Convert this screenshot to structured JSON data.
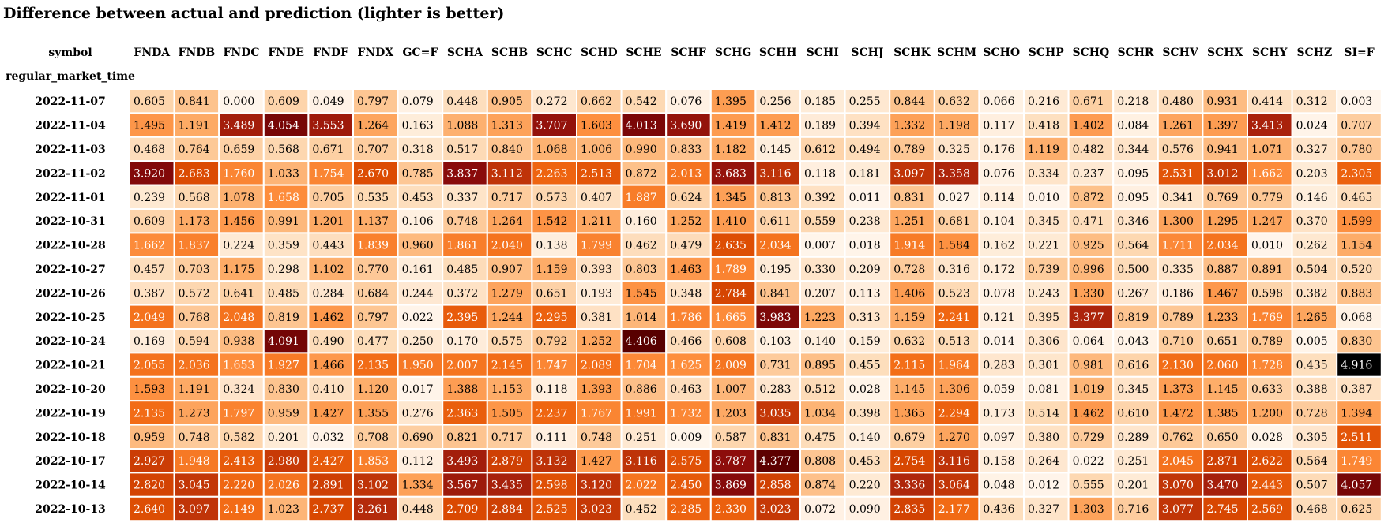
{
  "chart_data": {
    "type": "heatmap",
    "title": "Difference between actual and prediction (lighter is better)",
    "column_header": "symbol",
    "row_header": "regular_market_time",
    "columns": [
      "FNDA",
      "FNDB",
      "FNDC",
      "FNDE",
      "FNDF",
      "FNDX",
      "GC=F",
      "SCHA",
      "SCHB",
      "SCHC",
      "SCHD",
      "SCHE",
      "SCHF",
      "SCHG",
      "SCHH",
      "SCHI",
      "SCHJ",
      "SCHK",
      "SCHM",
      "SCHO",
      "SCHP",
      "SCHQ",
      "SCHR",
      "SCHV",
      "SCHX",
      "SCHY",
      "SCHZ",
      "SI=F"
    ],
    "rows": [
      "2022-11-07",
      "2022-11-04",
      "2022-11-03",
      "2022-11-02",
      "2022-11-01",
      "2022-10-31",
      "2022-10-28",
      "2022-10-27",
      "2022-10-26",
      "2022-10-25",
      "2022-10-24",
      "2022-10-21",
      "2022-10-20",
      "2022-10-19",
      "2022-10-18",
      "2022-10-17",
      "2022-10-14",
      "2022-10-13"
    ],
    "values": [
      [
        "0.605",
        "0.841",
        "0.000",
        "0.609",
        "0.049",
        "0.797",
        "0.079",
        "0.448",
        "0.905",
        "0.272",
        "0.662",
        "0.542",
        "0.076",
        "1.395",
        "0.256",
        "0.185",
        "0.255",
        "0.844",
        "0.632",
        "0.066",
        "0.216",
        "0.671",
        "0.218",
        "0.480",
        "0.931",
        "0.414",
        "0.312",
        "0.003"
      ],
      [
        "1.495",
        "1.191",
        "3.489",
        "4.054",
        "3.553",
        "1.264",
        "0.163",
        "1.088",
        "1.313",
        "3.707",
        "1.603",
        "4.013",
        "3.690",
        "1.419",
        "1.412",
        "0.189",
        "0.394",
        "1.332",
        "1.198",
        "0.117",
        "0.418",
        "1.402",
        "0.084",
        "1.261",
        "1.397",
        "3.413",
        "0.024",
        "0.707"
      ],
      [
        "0.468",
        "0.764",
        "0.659",
        "0.568",
        "0.671",
        "0.707",
        "0.318",
        "0.517",
        "0.840",
        "1.068",
        "1.006",
        "0.990",
        "0.833",
        "1.182",
        "0.145",
        "0.612",
        "0.494",
        "0.789",
        "0.325",
        "0.176",
        "1.119",
        "0.482",
        "0.344",
        "0.576",
        "0.941",
        "1.071",
        "0.327",
        "0.780"
      ],
      [
        "3.920",
        "2.683",
        "1.760",
        "1.033",
        "1.754",
        "2.670",
        "0.785",
        "3.837",
        "3.112",
        "2.263",
        "2.513",
        "0.872",
        "2.013",
        "3.683",
        "3.116",
        "0.118",
        "0.181",
        "3.097",
        "3.358",
        "0.076",
        "0.334",
        "0.237",
        "0.095",
        "2.531",
        "3.012",
        "1.662",
        "0.203",
        "2.305"
      ],
      [
        "0.239",
        "0.568",
        "1.078",
        "1.658",
        "0.705",
        "0.535",
        "0.453",
        "0.337",
        "0.717",
        "0.573",
        "0.407",
        "1.887",
        "0.624",
        "1.345",
        "0.813",
        "0.392",
        "0.011",
        "0.831",
        "0.027",
        "0.114",
        "0.010",
        "0.872",
        "0.095",
        "0.341",
        "0.769",
        "0.779",
        "0.146",
        "0.465"
      ],
      [
        "0.609",
        "1.173",
        "1.456",
        "0.991",
        "1.201",
        "1.137",
        "0.106",
        "0.748",
        "1.264",
        "1.542",
        "1.211",
        "0.160",
        "1.252",
        "1.410",
        "0.611",
        "0.559",
        "0.238",
        "1.251",
        "0.681",
        "0.104",
        "0.345",
        "0.471",
        "0.346",
        "1.300",
        "1.295",
        "1.247",
        "0.370",
        "1.599"
      ],
      [
        "1.662",
        "1.837",
        "0.224",
        "0.359",
        "0.443",
        "1.839",
        "0.960",
        "1.861",
        "2.040",
        "0.138",
        "1.799",
        "0.462",
        "0.479",
        "2.635",
        "2.034",
        "0.007",
        "0.018",
        "1.914",
        "1.584",
        "0.162",
        "0.221",
        "0.925",
        "0.564",
        "1.711",
        "2.034",
        "0.010",
        "0.262",
        "1.154"
      ],
      [
        "0.457",
        "0.703",
        "1.175",
        "0.298",
        "1.102",
        "0.770",
        "0.161",
        "0.485",
        "0.907",
        "1.159",
        "0.393",
        "0.803",
        "1.463",
        "1.789",
        "0.195",
        "0.330",
        "0.209",
        "0.728",
        "0.316",
        "0.172",
        "0.739",
        "0.996",
        "0.500",
        "0.335",
        "0.887",
        "0.891",
        "0.504",
        "0.520"
      ],
      [
        "0.387",
        "0.572",
        "0.641",
        "0.485",
        "0.284",
        "0.684",
        "0.244",
        "0.372",
        "1.279",
        "0.651",
        "0.193",
        "1.545",
        "0.348",
        "2.784",
        "0.841",
        "0.207",
        "0.113",
        "1.406",
        "0.523",
        "0.078",
        "0.243",
        "1.330",
        "0.267",
        "0.186",
        "1.467",
        "0.598",
        "0.382",
        "0.883"
      ],
      [
        "2.049",
        "0.768",
        "2.048",
        "0.819",
        "1.462",
        "0.797",
        "0.022",
        "2.395",
        "1.244",
        "2.295",
        "0.381",
        "1.014",
        "1.786",
        "1.665",
        "3.983",
        "1.223",
        "0.313",
        "1.159",
        "2.241",
        "0.121",
        "0.395",
        "3.377",
        "0.819",
        "0.789",
        "1.233",
        "1.769",
        "1.265",
        "0.068"
      ],
      [
        "0.169",
        "0.594",
        "0.938",
        "4.091",
        "0.490",
        "0.477",
        "0.250",
        "0.170",
        "0.575",
        "0.792",
        "1.252",
        "4.406",
        "0.466",
        "0.608",
        "0.103",
        "0.140",
        "0.159",
        "0.632",
        "0.513",
        "0.014",
        "0.306",
        "0.064",
        "0.043",
        "0.710",
        "0.651",
        "0.789",
        "0.005",
        "0.830"
      ],
      [
        "2.055",
        "2.036",
        "1.653",
        "1.927",
        "1.466",
        "2.135",
        "1.950",
        "2.007",
        "2.145",
        "1.747",
        "2.089",
        "1.704",
        "1.625",
        "2.009",
        "0.731",
        "0.895",
        "0.455",
        "2.115",
        "1.964",
        "0.283",
        "0.301",
        "0.981",
        "0.616",
        "2.130",
        "2.060",
        "1.728",
        "0.435",
        "4.916"
      ],
      [
        "1.593",
        "1.191",
        "0.324",
        "0.830",
        "0.410",
        "1.120",
        "0.017",
        "1.388",
        "1.153",
        "0.118",
        "1.393",
        "0.886",
        "0.463",
        "1.007",
        "0.283",
        "0.512",
        "0.028",
        "1.145",
        "1.306",
        "0.059",
        "0.081",
        "1.019",
        "0.345",
        "1.373",
        "1.145",
        "0.633",
        "0.388",
        "0.387"
      ],
      [
        "2.135",
        "1.273",
        "1.797",
        "0.959",
        "1.427",
        "1.355",
        "0.276",
        "2.363",
        "1.505",
        "2.237",
        "1.767",
        "1.991",
        "1.732",
        "1.203",
        "3.035",
        "1.034",
        "0.398",
        "1.365",
        "2.294",
        "0.173",
        "0.514",
        "1.462",
        "0.610",
        "1.472",
        "1.385",
        "1.200",
        "0.728",
        "1.394"
      ],
      [
        "0.959",
        "0.748",
        "0.582",
        "0.201",
        "0.032",
        "0.708",
        "0.690",
        "0.821",
        "0.717",
        "0.111",
        "0.748",
        "0.251",
        "0.009",
        "0.587",
        "0.831",
        "0.475",
        "0.140",
        "0.679",
        "1.270",
        "0.097",
        "0.380",
        "0.729",
        "0.289",
        "0.762",
        "0.650",
        "0.028",
        "0.305",
        "2.511"
      ],
      [
        "2.927",
        "1.948",
        "2.413",
        "2.980",
        "2.427",
        "1.853",
        "0.112",
        "3.493",
        "2.879",
        "3.132",
        "1.427",
        "3.116",
        "2.575",
        "3.787",
        "4.377",
        "0.808",
        "0.453",
        "2.754",
        "3.116",
        "0.158",
        "0.264",
        "0.022",
        "0.251",
        "2.045",
        "2.871",
        "2.622",
        "0.564",
        "1.749"
      ],
      [
        "2.820",
        "3.045",
        "2.220",
        "2.026",
        "2.891",
        "3.102",
        "1.334",
        "3.567",
        "3.435",
        "2.598",
        "3.120",
        "2.022",
        "2.450",
        "3.869",
        "2.858",
        "0.874",
        "0.220",
        "3.336",
        "3.064",
        "0.048",
        "0.012",
        "0.555",
        "0.201",
        "3.070",
        "3.470",
        "2.443",
        "0.507",
        "4.057"
      ],
      [
        "2.640",
        "3.097",
        "2.149",
        "1.023",
        "2.737",
        "3.261",
        "0.448",
        "2.709",
        "2.884",
        "2.525",
        "3.023",
        "0.452",
        "2.285",
        "2.330",
        "3.023",
        "0.072",
        "0.090",
        "2.835",
        "2.177",
        "0.436",
        "0.327",
        "1.303",
        "0.716",
        "3.077",
        "2.745",
        "2.569",
        "0.468",
        "0.625"
      ]
    ],
    "colormap": [
      "#fff5eb",
      "#fdd9b3",
      "#fdb06e",
      "#fd8d3c",
      "#f16913",
      "#d94801",
      "#b32a0b",
      "#8a0b0b",
      "#5e0000",
      "#000000"
    ]
  }
}
